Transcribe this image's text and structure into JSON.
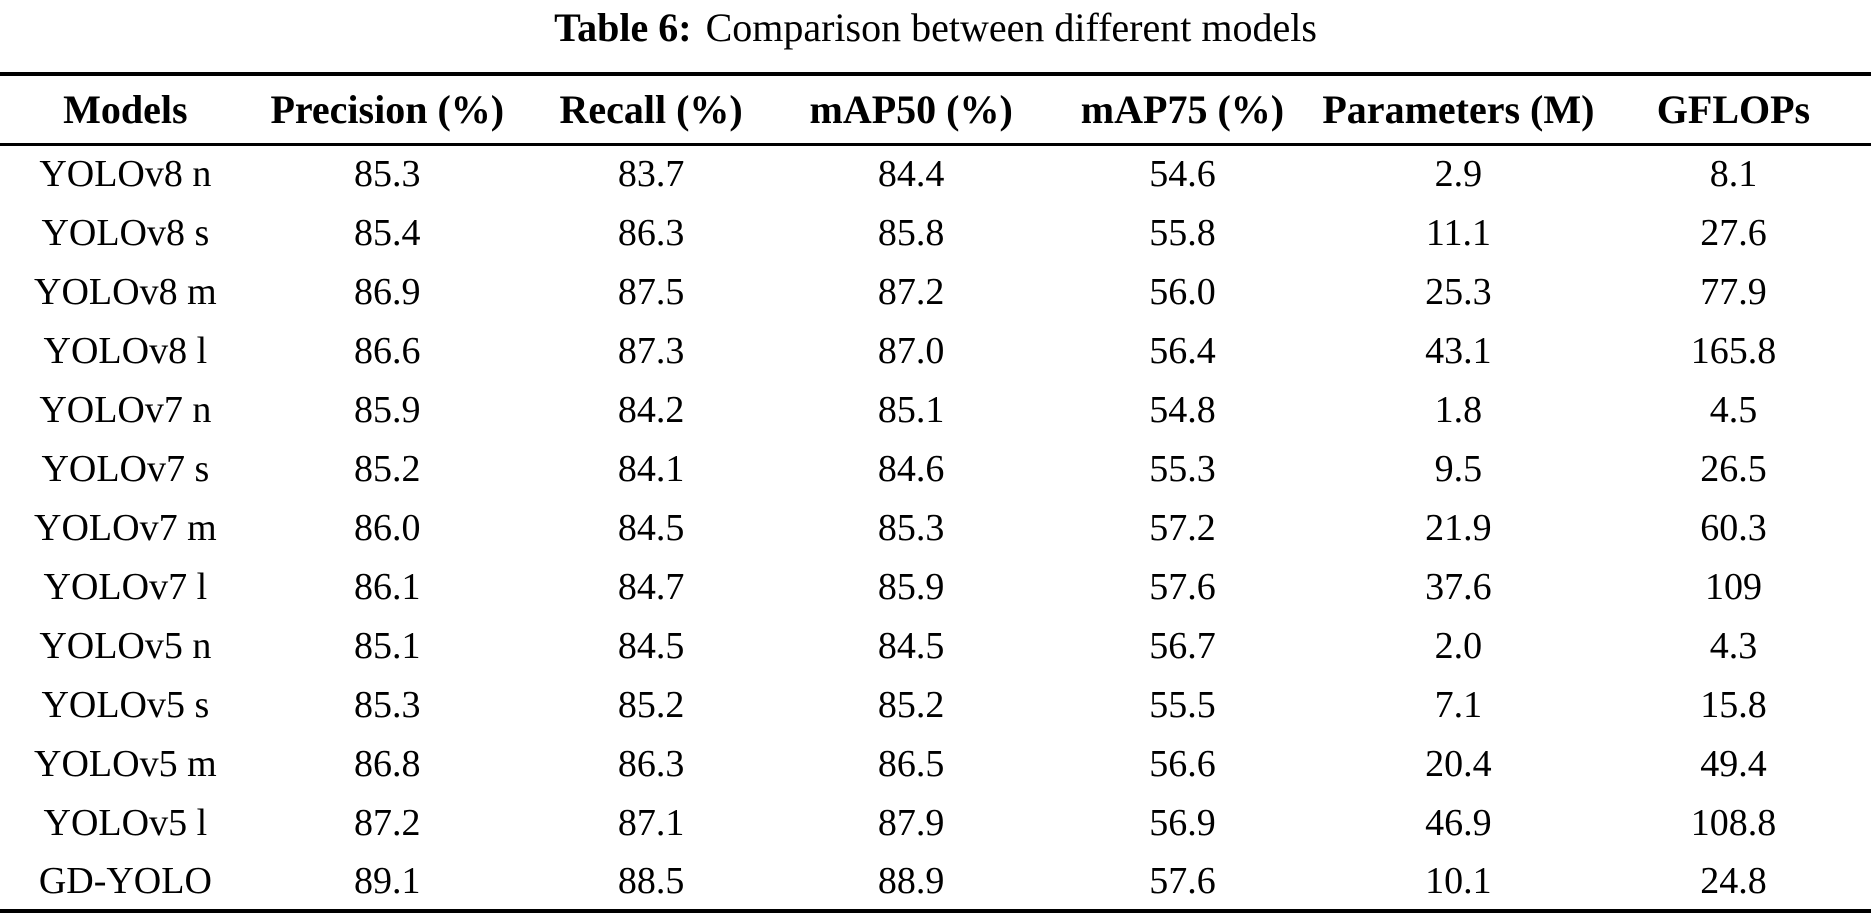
{
  "page": {
    "background_color": "#ffffff",
    "text_color": "#000000"
  },
  "caption": {
    "label": "Table 6:",
    "text": "Comparison between different models"
  },
  "table": {
    "columns": [
      "Models",
      "Precision (%)",
      "Recall (%)",
      "mAP50 (%)",
      "mAP75 (%)",
      "Parameters (M)",
      "GFLOPs"
    ],
    "rows": [
      {
        "model": "YOLOv8 n",
        "values": [
          "85.3",
          "83.7",
          "84.4",
          "54.6",
          "2.9",
          "8.1"
        ]
      },
      {
        "model": "YOLOv8 s",
        "values": [
          "85.4",
          "86.3",
          "85.8",
          "55.8",
          "11.1",
          "27.6"
        ]
      },
      {
        "model": "YOLOv8 m",
        "values": [
          "86.9",
          "87.5",
          "87.2",
          "56.0",
          "25.3",
          "77.9"
        ]
      },
      {
        "model": "YOLOv8 l",
        "values": [
          "86.6",
          "87.3",
          "87.0",
          "56.4",
          "43.1",
          "165.8"
        ]
      },
      {
        "model": "YOLOv7 n",
        "values": [
          "85.9",
          "84.2",
          "85.1",
          "54.8",
          "1.8",
          "4.5"
        ]
      },
      {
        "model": "YOLOv7 s",
        "values": [
          "85.2",
          "84.1",
          "84.6",
          "55.3",
          "9.5",
          "26.5"
        ]
      },
      {
        "model": "YOLOv7 m",
        "values": [
          "86.0",
          "84.5",
          "85.3",
          "57.2",
          "21.9",
          "60.3"
        ]
      },
      {
        "model": "YOLOv7 l",
        "values": [
          "86.1",
          "84.7",
          "85.9",
          "57.6",
          "37.6",
          "109"
        ]
      },
      {
        "model": "YOLOv5 n",
        "values": [
          "85.1",
          "84.5",
          "84.5",
          "56.7",
          "2.0",
          "4.3"
        ]
      },
      {
        "model": "YOLOv5 s",
        "values": [
          "85.3",
          "85.2",
          "85.2",
          "55.5",
          "7.1",
          "15.8"
        ]
      },
      {
        "model": "YOLOv5 m",
        "values": [
          "86.8",
          "86.3",
          "86.5",
          "56.6",
          "20.4",
          "49.4"
        ]
      },
      {
        "model": "YOLOv5 l",
        "values": [
          "87.2",
          "87.1",
          "87.9",
          "56.9",
          "46.9",
          "108.8"
        ]
      },
      {
        "model": "GD-YOLO",
        "values": [
          "89.1",
          "88.5",
          "88.9",
          "57.6",
          "10.1",
          "24.8"
        ]
      }
    ]
  }
}
